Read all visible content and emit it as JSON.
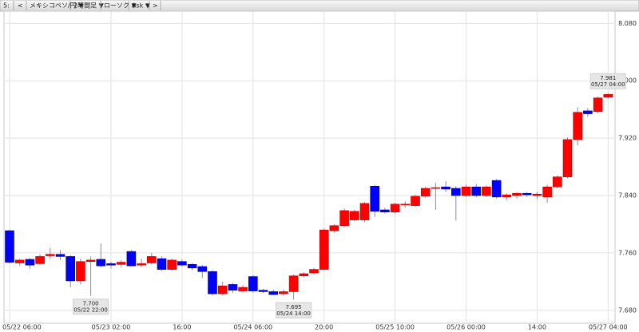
{
  "toolbar": {
    "items": [
      "5:",
      "<",
      "メキシコペソ/円 ▼",
      "2時間足 ▼",
      "ローソク ▼",
      "Ask ▼",
      ">"
    ]
  },
  "chart_data": {
    "type": "candlestick",
    "categories": [
      "05/22 06:00",
      null,
      null,
      null,
      null,
      null,
      null,
      null,
      null,
      null,
      "05/23 02:00",
      null,
      null,
      null,
      null,
      null,
      null,
      "16:00",
      null,
      null,
      null,
      null,
      null,
      null,
      "05/24 06:00",
      null,
      null,
      null,
      null,
      null,
      null,
      "20:00",
      null,
      null,
      null,
      null,
      null,
      null,
      "05/25 10:00",
      null,
      null,
      null,
      null,
      null,
      null,
      "05/26 00:00",
      null,
      null,
      null,
      null,
      null,
      null,
      "14:00",
      null,
      null,
      null,
      null,
      null,
      null,
      "05/27 04:00"
    ],
    "open": [
      7.791,
      7.746,
      7.751,
      7.745,
      7.756,
      7.758,
      7.755,
      7.721,
      7.748,
      7.751,
      7.745,
      7.744,
      7.762,
      7.743,
      7.746,
      7.752,
      7.737,
      7.748,
      7.744,
      7.741,
      7.734,
      7.703,
      7.716,
      7.707,
      7.727,
      7.708,
      7.706,
      7.703,
      7.706,
      7.728,
      7.732,
      7.737,
      7.791,
      7.798,
      7.806,
      7.806,
      7.853,
      7.82,
      7.817,
      7.827,
      7.826,
      7.839,
      7.85,
      7.852,
      7.85,
      7.84,
      7.852,
      7.84,
      7.861,
      7.838,
      7.84,
      7.843,
      7.84,
      7.838,
      7.852,
      7.866,
      7.918,
      7.958,
      7.957,
      7.977
    ],
    "high": [
      7.792,
      7.752,
      7.753,
      7.758,
      7.767,
      7.764,
      7.757,
      7.752,
      7.755,
      7.773,
      7.748,
      7.75,
      7.764,
      7.752,
      7.76,
      7.755,
      7.752,
      7.751,
      7.746,
      7.743,
      7.736,
      7.72,
      7.718,
      7.715,
      7.729,
      7.71,
      7.709,
      7.709,
      7.73,
      7.733,
      7.739,
      7.794,
      7.8,
      7.822,
      7.82,
      7.831,
      7.855,
      7.823,
      7.83,
      7.832,
      7.841,
      7.852,
      7.858,
      7.86,
      7.853,
      7.855,
      7.856,
      7.854,
      7.863,
      7.843,
      7.845,
      7.845,
      7.845,
      7.855,
      7.868,
      7.921,
      7.963,
      7.962,
      7.978,
      7.983
    ],
    "low": [
      7.745,
      7.742,
      7.738,
      7.744,
      7.752,
      7.75,
      7.712,
      7.716,
      7.7,
      7.74,
      7.738,
      7.74,
      7.741,
      7.74,
      7.744,
      7.735,
      7.735,
      7.741,
      7.736,
      7.725,
      7.701,
      7.701,
      7.704,
      7.705,
      7.705,
      7.704,
      7.701,
      7.701,
      7.695,
      7.726,
      7.73,
      7.735,
      7.788,
      7.796,
      7.804,
      7.803,
      7.81,
      7.815,
      7.815,
      7.823,
      7.824,
      7.837,
      7.82,
      7.845,
      7.805,
      7.838,
      7.838,
      7.838,
      7.836,
      7.833,
      7.836,
      7.838,
      7.835,
      7.83,
      7.85,
      7.864,
      7.91,
      7.95,
      7.955,
      7.975
    ],
    "close": [
      7.747,
      7.75,
      7.743,
      7.755,
      7.758,
      7.755,
      7.721,
      7.748,
      7.75,
      7.742,
      7.743,
      7.747,
      7.742,
      7.745,
      7.755,
      7.737,
      7.75,
      7.743,
      7.739,
      7.734,
      7.703,
      7.714,
      7.708,
      7.712,
      7.707,
      7.706,
      7.702,
      7.706,
      7.728,
      7.731,
      7.737,
      7.792,
      7.798,
      7.819,
      7.818,
      7.829,
      7.818,
      7.817,
      7.828,
      7.828,
      7.839,
      7.85,
      7.851,
      7.849,
      7.84,
      7.852,
      7.84,
      7.852,
      7.838,
      7.841,
      7.843,
      7.841,
      7.842,
      7.852,
      7.866,
      7.918,
      7.956,
      7.954,
      7.976,
      7.981
    ],
    "up_color": "#ff0000",
    "down_color": "#0000ff",
    "ylim": [
      7.662,
      8.097
    ],
    "yticks": [
      {
        "value": 7.68,
        "label": "7.680"
      },
      {
        "value": 7.76,
        "label": "7.760"
      },
      {
        "value": 7.84,
        "label": "7.840"
      },
      {
        "value": 7.92,
        "label": "7.920"
      },
      {
        "value": 8.0,
        "label": "8.000"
      },
      {
        "value": 8.08,
        "label": "8.080"
      }
    ],
    "grid": true,
    "annotations": [
      {
        "value": 7.7,
        "label": "7.700",
        "time": "05/22 22:00"
      },
      {
        "value": 7.695,
        "label": "7.695",
        "time": "05/24 14:00"
      },
      {
        "value": 7.981,
        "label": "7.981",
        "time": "05/27 04:00"
      }
    ]
  }
}
